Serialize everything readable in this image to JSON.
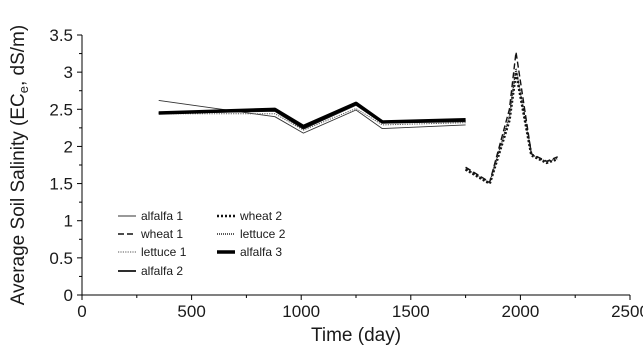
{
  "chart_data": {
    "type": "line",
    "xlabel": "Time (day)",
    "ylabel_parts": [
      "Average Soil Salinity (EC",
      "e",
      ", dS/m)"
    ],
    "xlim": [
      0,
      2500
    ],
    "ylim": [
      0,
      3.5
    ],
    "xticks": [
      0,
      500,
      1000,
      1500,
      2000,
      2500
    ],
    "yticks": [
      0,
      0.5,
      1,
      1.5,
      2,
      2.5,
      3,
      3.5
    ],
    "xtick_labels": [
      "0",
      "500",
      "1000",
      "1500",
      "2000",
      "2500"
    ],
    "ytick_labels": [
      "0",
      "0.5",
      "1",
      "1.5",
      "2",
      "2.5",
      "3",
      "3.5"
    ],
    "grid": false,
    "legend_position": "lower-left",
    "series": [
      {
        "name": "alfalfa 1",
        "style": "thin-solid",
        "x": [
          350,
          880,
          1010,
          1250,
          1370,
          1750
        ],
        "y": [
          2.62,
          2.4,
          2.18,
          2.49,
          2.24,
          2.29
        ]
      },
      {
        "name": "wheat 1",
        "style": "dashed",
        "x": [
          1750,
          1860,
          1950,
          1980,
          2050,
          2120,
          2170
        ],
        "y": [
          1.72,
          1.52,
          2.5,
          3.27,
          1.9,
          1.8,
          1.86
        ]
      },
      {
        "name": "lettuce 1",
        "style": "thin-dotted",
        "x": [
          350,
          880,
          1010,
          1250,
          1370,
          1750
        ],
        "y": [
          2.44,
          2.44,
          2.22,
          2.51,
          2.29,
          2.32
        ]
      },
      {
        "name": "alfalfa 2",
        "style": "medium-solid",
        "x": [
          350,
          880,
          1010,
          1250,
          1370,
          1750
        ],
        "y": [
          2.45,
          2.48,
          2.24,
          2.56,
          2.32,
          2.34
        ]
      },
      {
        "name": "wheat 2",
        "style": "heavy-dotted",
        "x": [
          1750,
          1860,
          1950,
          1980,
          2050,
          2120,
          2170
        ],
        "y": [
          1.69,
          1.5,
          2.35,
          3.0,
          1.88,
          1.78,
          1.83
        ]
      },
      {
        "name": "lettuce 2",
        "style": "fine-dotted",
        "x": [
          1750,
          1860,
          1950,
          1980,
          2050,
          2120,
          2170
        ],
        "y": [
          1.7,
          1.51,
          2.4,
          3.05,
          1.89,
          1.79,
          1.84
        ]
      },
      {
        "name": "alfalfa 3",
        "style": "thick-solid",
        "x": [
          350,
          880,
          1010,
          1250,
          1370,
          1750
        ],
        "y": [
          2.45,
          2.5,
          2.27,
          2.58,
          2.33,
          2.36
        ]
      }
    ]
  }
}
